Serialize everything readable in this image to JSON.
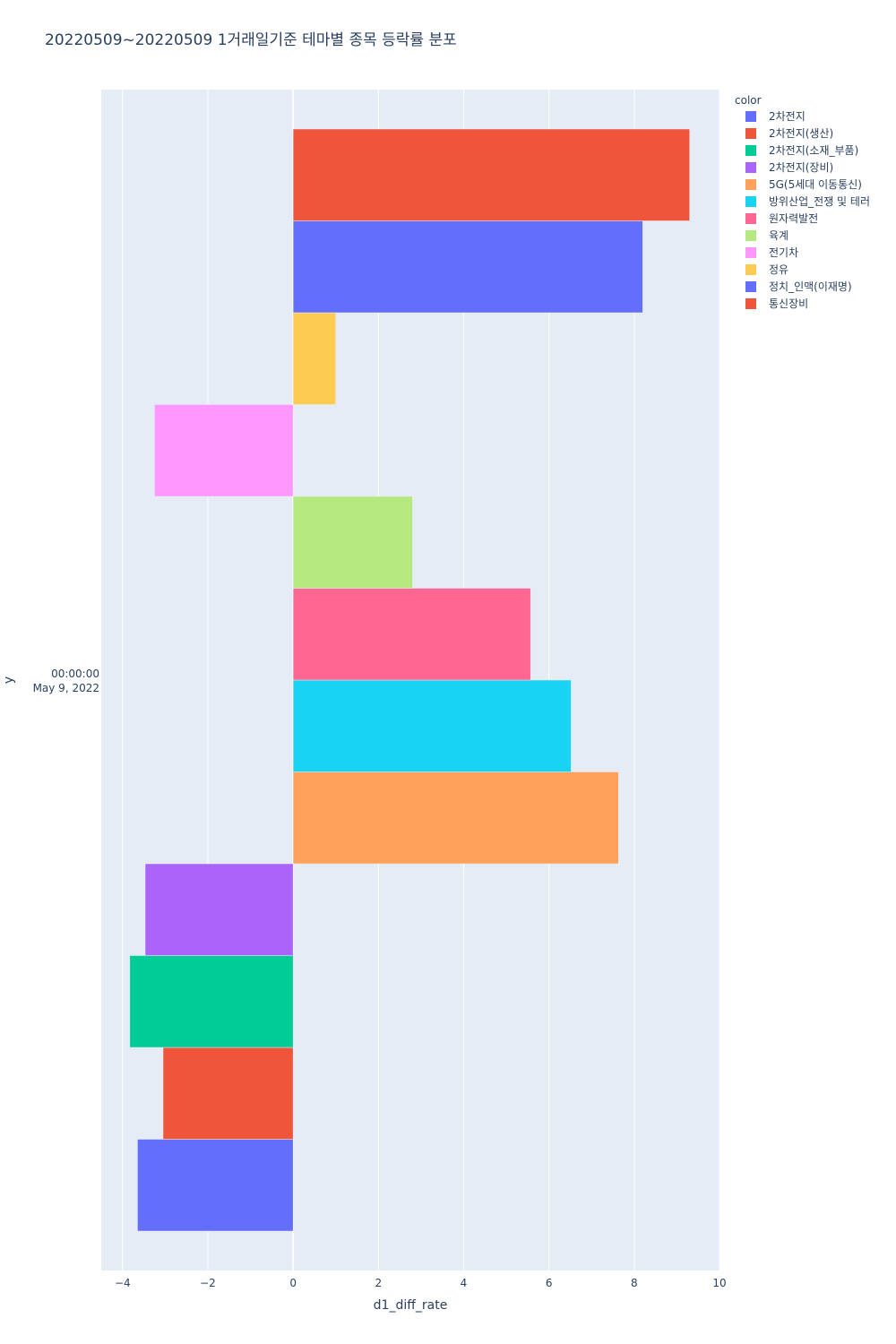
{
  "chart_data": {
    "type": "bar",
    "orientation": "horizontal",
    "title": "20220509~20220509 1거래일기준 테마별 종목 등락률 분포",
    "xlabel": "d1_diff_rate",
    "ylabel": "y",
    "xlim": [
      -4.5,
      10
    ],
    "x_ticks": [
      -4,
      -2,
      0,
      2,
      4,
      6,
      8,
      10
    ],
    "x_tick_labels": [
      "−4",
      "−2",
      "0",
      "2",
      "4",
      "6",
      "8",
      "10"
    ],
    "y_category_label_lines": [
      "00:00:00",
      "May 9, 2022"
    ],
    "legend_title": "color",
    "series": [
      {
        "name": "2차전지",
        "color": "#636efa",
        "value": -3.65
      },
      {
        "name": "2차전지(생산)",
        "color": "#ef553b",
        "value": -3.05
      },
      {
        "name": "2차전지(소재_부품)",
        "color": "#00cc96",
        "value": -3.83
      },
      {
        "name": "2차전지(장비)",
        "color": "#ab63fa",
        "value": -3.47
      },
      {
        "name": "5G(5세대 이동통신)",
        "color": "#ffa15a",
        "value": 7.63
      },
      {
        "name": "방위산업_전쟁 및 테러",
        "color": "#19d3f3",
        "value": 6.52
      },
      {
        "name": "원자력발전",
        "color": "#ff6692",
        "value": 5.57
      },
      {
        "name": "육계",
        "color": "#b6e880",
        "value": 2.8
      },
      {
        "name": "전기차",
        "color": "#ff97ff",
        "value": -3.25
      },
      {
        "name": "정유",
        "color": "#fecb52",
        "value": 1.0
      },
      {
        "name": "정치_인맥(이재명)",
        "color": "#636efa",
        "value": 8.2
      },
      {
        "name": "통신장비",
        "color": "#ef553b",
        "value": 9.3
      }
    ]
  }
}
